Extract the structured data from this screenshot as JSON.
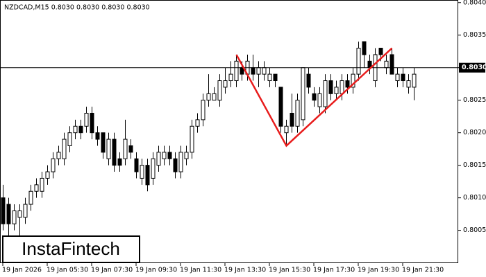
{
  "chart_data": {
    "type": "candlestick",
    "header": "NZDCAD,M15  0.8030 0.8030 0.8030 0.8030",
    "watermark": "InstaFintech",
    "categories": [
      "19 Jan 2026",
      null,
      null,
      null,
      null,
      null,
      null,
      null,
      "19 Jan 05:30",
      null,
      null,
      null,
      null,
      null,
      null,
      null,
      "19 Jan 07:30",
      null,
      null,
      null,
      null,
      null,
      null,
      null,
      "19 Jan 09:30",
      null,
      null,
      null,
      null,
      null,
      null,
      null,
      "19 Jan 11:30",
      null,
      null,
      null,
      null,
      null,
      null,
      null,
      "19 Jan 13:30",
      null,
      null,
      null,
      null,
      null,
      null,
      null,
      "19 Jan 15:30",
      null,
      null,
      null,
      null,
      null,
      null,
      null,
      "19 Jan 17:30",
      null,
      null,
      null,
      null,
      null,
      null,
      null,
      "19 Jan 19:30",
      null,
      null,
      null,
      null,
      null,
      null,
      null,
      "19 Jan 21:30",
      null,
      null
    ],
    "open": [
      0.801,
      0.8009,
      0.8006,
      0.8007,
      0.8007,
      0.8009,
      0.8011,
      0.8011,
      0.8013,
      0.8014,
      0.8016,
      0.8016,
      0.8018,
      0.802,
      0.8021,
      0.8021,
      0.8023,
      0.802,
      0.802,
      0.8016,
      0.8019,
      0.8016,
      0.8016,
      0.8018,
      0.8016,
      0.8013,
      0.8015,
      0.8013,
      0.8015,
      0.8016,
      0.8017,
      0.8016,
      0.8014,
      0.8016,
      0.8017,
      0.8021,
      0.8022,
      0.8025,
      0.8025,
      0.8025,
      0.8027,
      0.8028,
      0.8028,
      0.803,
      0.8029,
      0.803,
      0.8029,
      0.8029,
      0.8028,
      0.8029,
      0.8027,
      0.802,
      0.8023,
      0.8021,
      0.8022,
      0.8029,
      0.8026,
      0.8024,
      0.8024,
      0.8028,
      0.8026,
      0.8026,
      0.8028,
      0.8027,
      0.8029,
      0.8034,
      0.8031,
      0.8028,
      0.8033,
      0.803,
      0.8032,
      0.8028,
      0.8029,
      0.8027,
      0.8027
    ],
    "high": [
      0.8012,
      0.801,
      0.8009,
      0.8009,
      0.801,
      0.8012,
      0.8013,
      0.8014,
      0.8015,
      0.8017,
      0.8018,
      0.802,
      0.8021,
      0.8022,
      0.8022,
      0.8024,
      0.8024,
      0.8021,
      0.802,
      0.802,
      0.802,
      0.8017,
      0.8022,
      0.8019,
      0.8017,
      0.8016,
      0.8016,
      0.8017,
      0.8018,
      0.8018,
      0.8018,
      0.8017,
      0.8018,
      0.8018,
      0.8022,
      0.8023,
      0.8026,
      0.8029,
      0.8027,
      0.8029,
      0.803,
      0.8031,
      0.8032,
      0.8031,
      0.8032,
      0.8032,
      0.8031,
      0.8031,
      0.803,
      0.8029,
      0.8027,
      0.8022,
      0.8026,
      0.8026,
      0.803,
      0.803,
      0.8027,
      0.8027,
      0.8029,
      0.8029,
      0.8028,
      0.8029,
      0.8029,
      0.803,
      0.8034,
      0.8034,
      0.8032,
      0.8033,
      0.8033,
      0.8032,
      0.8033,
      0.803,
      0.803,
      0.8029,
      0.803
    ],
    "low": [
      0.8005,
      0.8004,
      0.8005,
      0.8003,
      0.8006,
      0.8008,
      0.801,
      0.801,
      0.8012,
      0.8013,
      0.8015,
      0.8015,
      0.8017,
      0.8019,
      0.8019,
      0.802,
      0.8019,
      0.8018,
      0.8016,
      0.8015,
      0.8014,
      0.8014,
      0.8015,
      0.8016,
      0.8013,
      0.8012,
      0.8011,
      0.8012,
      0.8014,
      0.8015,
      0.8015,
      0.8013,
      0.8013,
      0.8015,
      0.8016,
      0.802,
      0.8021,
      0.8024,
      0.8025,
      0.8024,
      0.8026,
      0.8027,
      0.8027,
      0.8028,
      0.8028,
      0.8028,
      0.8027,
      0.8028,
      0.8027,
      0.8027,
      0.802,
      0.8018,
      0.802,
      0.802,
      0.8021,
      0.8026,
      0.8024,
      0.8023,
      0.8023,
      0.8025,
      0.8025,
      0.8025,
      0.8026,
      0.8026,
      0.8028,
      0.803,
      0.8029,
      0.8027,
      0.8031,
      0.8029,
      0.8029,
      0.8027,
      0.8027,
      0.8026,
      0.8025
    ],
    "close": [
      0.8006,
      0.8006,
      0.8008,
      0.8008,
      0.8009,
      0.8011,
      0.8012,
      0.8013,
      0.8014,
      0.8016,
      0.8017,
      0.8019,
      0.802,
      0.8021,
      0.802,
      0.8023,
      0.802,
      0.8019,
      0.8017,
      0.8019,
      0.8015,
      0.8015,
      0.8019,
      0.8017,
      0.8014,
      0.8015,
      0.8012,
      0.8016,
      0.8017,
      0.8017,
      0.8016,
      0.8014,
      0.8017,
      0.8017,
      0.8021,
      0.8022,
      0.8025,
      0.8026,
      0.8026,
      0.8028,
      0.8028,
      0.8029,
      0.8031,
      0.8029,
      0.8031,
      0.8029,
      0.803,
      0.803,
      0.8029,
      0.8028,
      0.8021,
      0.8021,
      0.8021,
      0.8025,
      0.803,
      0.8027,
      0.8025,
      0.8026,
      0.8028,
      0.8026,
      0.8027,
      0.8028,
      0.8027,
      0.8029,
      0.8033,
      0.8032,
      0.803,
      0.8032,
      0.8032,
      0.8031,
      0.8029,
      0.8029,
      0.8028,
      0.8028,
      0.8029
    ],
    "up_color": "#ffffff",
    "down_color": "#000000",
    "ylim": [
      0.8,
      0.80404
    ],
    "yticks": [
      0.8005,
      {
        "value": 0.801,
        "label": "0.8010"
      },
      0.8015,
      {
        "value": 0.802,
        "label": "0.8020"
      },
      0.8025,
      {
        "value": 0.803,
        "label": "0.8030"
      },
      0.8035,
      {
        "value": 0.804,
        "label": "0.8040"
      }
    ],
    "current_price": {
      "value": 0.803,
      "label": "0.8030"
    },
    "pattern": {
      "color": "#e81c1c",
      "x": [
        42,
        51,
        70
      ],
      "y": [
        0.8032,
        0.8018,
        0.8033
      ]
    }
  }
}
